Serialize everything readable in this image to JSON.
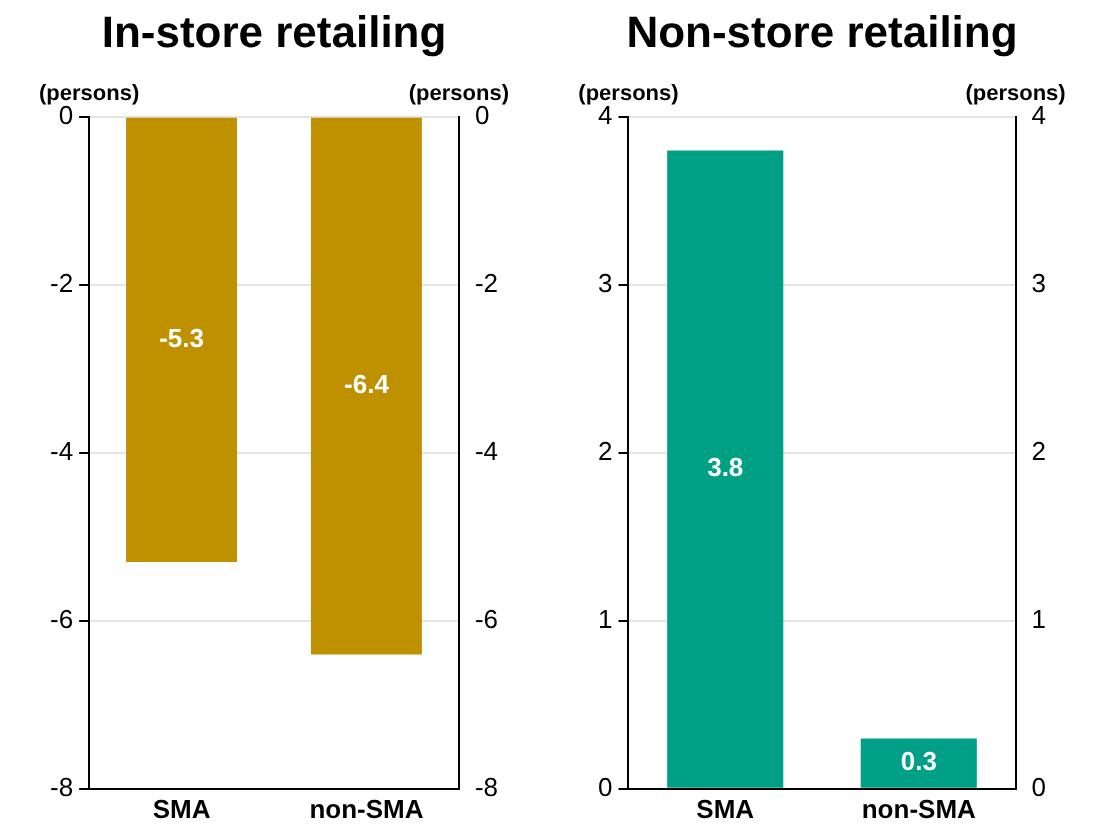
{
  "chart_data": [
    {
      "type": "bar",
      "title": "In-store retailing",
      "ylabel": "(persons)",
      "y2label": "(persons)",
      "categories": [
        "SMA",
        "non-SMA"
      ],
      "series": [
        {
          "color": "#bf9000",
          "values": [
            -5.3,
            -6.4
          ]
        }
      ],
      "ylim": [
        -8,
        0
      ],
      "yticks": [
        -8,
        -6,
        -4,
        -2,
        0
      ],
      "y2lim": [
        -8,
        0
      ],
      "y2ticks": [
        -8,
        -6,
        -4,
        -2,
        0
      ],
      "grid": "y",
      "data_labels": true
    },
    {
      "type": "bar",
      "title": "Non-store retailing",
      "ylabel": "(persons)",
      "y2label": "(persons)",
      "categories": [
        "SMA",
        "non-SMA"
      ],
      "series": [
        {
          "color": "#00a087",
          "values": [
            3.8,
            0.3
          ]
        }
      ],
      "ylim": [
        0,
        4
      ],
      "yticks": [
        0,
        1,
        2,
        3,
        4
      ],
      "y2lim": [
        0,
        4
      ],
      "y2ticks": [
        0,
        1,
        2,
        3,
        4
      ],
      "grid": "y",
      "data_labels": true
    }
  ]
}
